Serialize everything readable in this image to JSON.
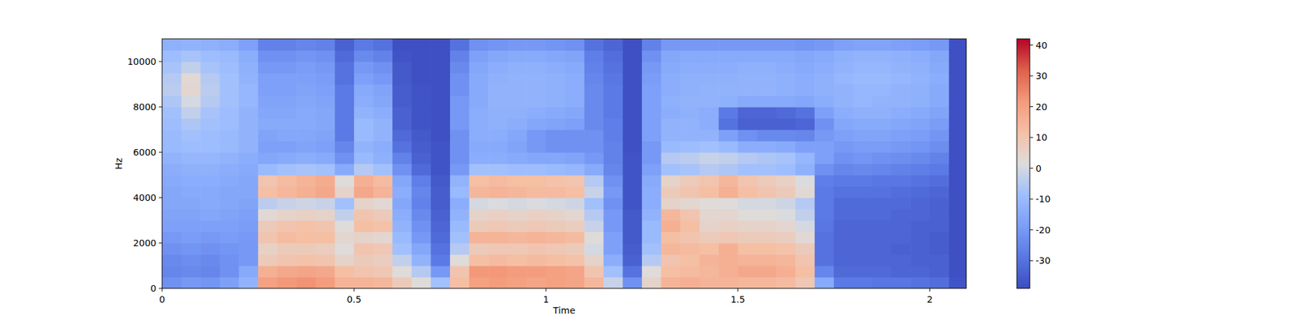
{
  "chart_data": {
    "type": "heatmap",
    "xlabel": "Time",
    "ylabel": "Hz",
    "xlim": [
      0,
      2.095
    ],
    "xticks": [
      0,
      0.5,
      1,
      1.5,
      2
    ],
    "ylim": [
      0,
      11000
    ],
    "yticks": [
      0,
      2000,
      4000,
      6000,
      8000,
      10000
    ],
    "x_edges": [
      0,
      0.05,
      0.1,
      0.15,
      0.2,
      0.25,
      0.3,
      0.35,
      0.4,
      0.45,
      0.5,
      0.55,
      0.6,
      0.65,
      0.7,
      0.75,
      0.8,
      0.85,
      0.9,
      0.95,
      1.0,
      1.05,
      1.1,
      1.15,
      1.2,
      1.25,
      1.3,
      1.35,
      1.4,
      1.45,
      1.5,
      1.55,
      1.6,
      1.65,
      1.7,
      1.75,
      1.8,
      1.85,
      1.9,
      1.95,
      2.0,
      2.05,
      2.1
    ],
    "y_edges": [
      0,
      500,
      1000,
      1500,
      2000,
      2500,
      3000,
      3500,
      4000,
      4500,
      5000,
      5500,
      6000,
      6500,
      7000,
      7500,
      8000,
      8500,
      9000,
      9500,
      10000,
      10500,
      11000
    ],
    "cells": [
      [
        -22,
        -25,
        -24,
        -22,
        -20,
        -18,
        -17,
        -16,
        -16,
        -15,
        -14,
        -12,
        -10,
        -10,
        -9,
        -8,
        -6,
        -4,
        -5,
        -7,
        -9,
        -13
      ],
      [
        -20,
        -24,
        -23,
        -21,
        -19,
        -18,
        -17,
        -16,
        -15,
        -14,
        -13,
        -11,
        -9,
        -8,
        -6,
        -3,
        0,
        4,
        3,
        -3,
        -7,
        -12
      ],
      [
        -21,
        -25,
        -24,
        -22,
        -20,
        -18,
        -16,
        -15,
        -15,
        -14,
        -13,
        -11,
        -9,
        -9,
        -8,
        -7,
        -5,
        -4,
        -5,
        -7,
        -9,
        -13
      ],
      [
        -18,
        -22,
        -22,
        -21,
        -19,
        -18,
        -17,
        -16,
        -16,
        -15,
        -14,
        -12,
        -10,
        -10,
        -9,
        -9,
        -8,
        -8,
        -8,
        -9,
        -10,
        -14
      ],
      [
        -12,
        -15,
        -20,
        -20,
        -20,
        -19,
        -18,
        -17,
        -16,
        -16,
        -15,
        -14,
        -12,
        -12,
        -12,
        -12,
        -11,
        -11,
        -12,
        -13,
        -14,
        -18
      ],
      [
        20,
        16,
        8,
        6,
        10,
        8,
        3,
        -4,
        12,
        10,
        -10,
        -16,
        -18,
        -17,
        -15,
        -16,
        -17,
        -18,
        -18,
        -20,
        -22,
        -26
      ],
      [
        22,
        18,
        10,
        8,
        13,
        10,
        5,
        -2,
        14,
        13,
        -8,
        -15,
        -18,
        -16,
        -15,
        -16,
        -17,
        -18,
        -18,
        -20,
        -22,
        -26
      ],
      [
        23,
        19,
        11,
        8,
        12,
        11,
        6,
        -1,
        16,
        15,
        -7,
        -14,
        -17,
        -16,
        -15,
        -15,
        -16,
        -17,
        -18,
        -19,
        -21,
        -25
      ],
      [
        21,
        18,
        10,
        7,
        12,
        10,
        5,
        -2,
        18,
        17,
        -8,
        -15,
        -18,
        -17,
        -16,
        -16,
        -17,
        -18,
        -19,
        -20,
        -22,
        -26
      ],
      [
        15,
        12,
        5,
        2,
        4,
        2,
        -3,
        -8,
        5,
        2,
        -15,
        -22,
        -25,
        -28,
        -28,
        -28,
        -28,
        -28,
        -30,
        -30,
        -32,
        -34
      ],
      [
        15,
        10,
        8,
        10,
        5,
        12,
        10,
        5,
        18,
        16,
        -5,
        -10,
        -12,
        -10,
        -10,
        -12,
        -14,
        -15,
        -18,
        -20,
        -24,
        -28
      ],
      [
        14,
        9,
        7,
        9,
        4,
        11,
        8,
        3,
        15,
        13,
        -8,
        -13,
        -14,
        -12,
        -12,
        -14,
        -16,
        -17,
        -20,
        -22,
        -26,
        -30
      ],
      [
        8,
        2,
        -3,
        -8,
        -10,
        -12,
        -14,
        -16,
        -14,
        -16,
        -22,
        -26,
        -30,
        -32,
        -34,
        -34,
        -35,
        -35,
        -36,
        -36,
        -37,
        -38
      ],
      [
        2,
        -5,
        -12,
        -16,
        -20,
        -22,
        -24,
        -26,
        -25,
        -27,
        -32,
        -34,
        -35,
        -36,
        -37,
        -37,
        -37,
        -37,
        -38,
        -38,
        -38,
        -38
      ],
      [
        -8,
        -20,
        -28,
        -30,
        -32,
        -33,
        -34,
        -35,
        -35,
        -36,
        -37,
        -37,
        -37,
        -38,
        -38,
        -38,
        -38,
        -38,
        -38,
        -38,
        -38,
        -38
      ],
      [
        12,
        10,
        2,
        -5,
        -8,
        -10,
        -12,
        -14,
        -10,
        -12,
        -20,
        -22,
        -22,
        -22,
        -20,
        -20,
        -20,
        -22,
        -22,
        -24,
        -26,
        -30
      ],
      [
        20,
        22,
        12,
        8,
        15,
        8,
        5,
        0,
        14,
        12,
        -8,
        -14,
        -15,
        -14,
        -14,
        -14,
        -15,
        -15,
        -15,
        -16,
        -18,
        -22
      ],
      [
        21,
        22,
        13,
        9,
        15,
        9,
        6,
        1,
        15,
        13,
        -8,
        -14,
        -15,
        -14,
        -13,
        -13,
        -12,
        -12,
        -13,
        -14,
        -16,
        -21
      ],
      [
        20,
        21,
        12,
        9,
        14,
        8,
        5,
        0,
        14,
        12,
        -9,
        -15,
        -17,
        -16,
        -14,
        -13,
        -12,
        -12,
        -12,
        -13,
        -15,
        -20
      ],
      [
        19,
        21,
        13,
        10,
        15,
        9,
        6,
        1,
        13,
        12,
        -9,
        -16,
        -20,
        -20,
        -16,
        -14,
        -12,
        -12,
        -12,
        -13,
        -15,
        -20
      ],
      [
        20,
        20,
        12,
        9,
        14,
        8,
        5,
        0,
        13,
        11,
        -10,
        -16,
        -22,
        -22,
        -17,
        -15,
        -13,
        -13,
        -13,
        -14,
        -16,
        -21
      ],
      [
        19,
        19,
        11,
        8,
        13,
        7,
        4,
        -1,
        12,
        10,
        -11,
        -17,
        -22,
        -22,
        -18,
        -16,
        -14,
        -14,
        -14,
        -15,
        -17,
        -22
      ],
      [
        14,
        10,
        5,
        0,
        2,
        -2,
        -5,
        -8,
        -2,
        -5,
        -15,
        -20,
        -22,
        -22,
        -24,
        -24,
        -24,
        -24,
        -25,
        -26,
        -27,
        -30
      ],
      [
        -2,
        -8,
        -14,
        -18,
        -18,
        -20,
        -20,
        -22,
        -20,
        -22,
        -25,
        -26,
        -26,
        -27,
        -27,
        -28,
        -28,
        -28,
        -29,
        -30,
        -31,
        -33
      ],
      [
        -22,
        -30,
        -34,
        -35,
        -36,
        -36,
        -36,
        -37,
        -37,
        -37,
        -37,
        -37,
        -38,
        -38,
        -38,
        -38,
        -38,
        -38,
        -38,
        -38,
        -38,
        -38
      ],
      [
        5,
        2,
        -5,
        -8,
        -10,
        -10,
        -12,
        -14,
        -14,
        -15,
        -18,
        -20,
        -20,
        -18,
        -18,
        -18,
        -18,
        -18,
        -19,
        -20,
        -22,
        -26
      ],
      [
        15,
        12,
        10,
        14,
        12,
        16,
        14,
        5,
        8,
        5,
        -8,
        -5,
        -10,
        -12,
        -12,
        -14,
        -13,
        -14,
        -14,
        -15,
        -16,
        -20
      ],
      [
        16,
        13,
        12,
        13,
        10,
        12,
        10,
        4,
        10,
        8,
        -7,
        -4,
        -9,
        -12,
        -12,
        -13,
        -12,
        -13,
        -13,
        -14,
        -15,
        -20
      ],
      [
        15,
        14,
        15,
        12,
        8,
        5,
        4,
        2,
        12,
        10,
        -5,
        -2,
        -8,
        -12,
        -14,
        -14,
        -12,
        -12,
        -13,
        -14,
        -15,
        -20
      ],
      [
        15,
        16,
        16,
        16,
        9,
        6,
        4,
        2,
        16,
        14,
        -6,
        -3,
        -10,
        -18,
        -30,
        -28,
        -13,
        -12,
        -13,
        -14,
        -15,
        -20
      ],
      [
        14,
        18,
        15,
        12,
        8,
        5,
        2,
        0,
        12,
        10,
        -8,
        -5,
        -14,
        -22,
        -34,
        -33,
        -15,
        -12,
        -12,
        -13,
        -15,
        -20
      ],
      [
        14,
        18,
        15,
        12,
        8,
        5,
        2,
        0,
        10,
        8,
        -8,
        -6,
        -14,
        -24,
        -34,
        -33,
        -15,
        -12,
        -12,
        -13,
        -15,
        -20
      ],
      [
        13,
        16,
        14,
        11,
        7,
        4,
        1,
        -1,
        8,
        6,
        -9,
        -7,
        -15,
        -24,
        -34,
        -32,
        -15,
        -13,
        -13,
        -14,
        -15,
        -20
      ],
      [
        9,
        12,
        10,
        8,
        3,
        0,
        -3,
        -5,
        3,
        1,
        -13,
        -11,
        -18,
        -25,
        -33,
        -30,
        -16,
        -14,
        -14,
        -15,
        -16,
        -21
      ],
      [
        -15,
        -25,
        -30,
        -30,
        -30,
        -29,
        -28,
        -28,
        -28,
        -27,
        -22,
        -18,
        -18,
        -20,
        -22,
        -18,
        -14,
        -13,
        -13,
        -14,
        -15,
        -20
      ],
      [
        -28,
        -32,
        -33,
        -33,
        -33,
        -33,
        -32,
        -32,
        -30,
        -28,
        -25,
        -22,
        -20,
        -18,
        -16,
        -14,
        -12,
        -12,
        -11,
        -12,
        -13,
        -18
      ],
      [
        -28,
        -32,
        -33,
        -33,
        -33,
        -33,
        -32,
        -32,
        -30,
        -28,
        -24,
        -21,
        -19,
        -17,
        -15,
        -13,
        -11,
        -11,
        -10,
        -11,
        -12,
        -17
      ],
      [
        -29,
        -32,
        -33,
        -33,
        -33,
        -33,
        -32,
        -32,
        -30,
        -29,
        -25,
        -22,
        -19,
        -17,
        -15,
        -13,
        -12,
        -11,
        -10,
        -11,
        -12,
        -17
      ],
      [
        -29,
        -33,
        -33,
        -34,
        -33,
        -33,
        -33,
        -32,
        -31,
        -29,
        -26,
        -23,
        -20,
        -18,
        -16,
        -14,
        -12,
        -12,
        -11,
        -12,
        -13,
        -18
      ],
      [
        -30,
        -33,
        -34,
        -34,
        -34,
        -34,
        -33,
        -33,
        -32,
        -30,
        -27,
        -24,
        -21,
        -19,
        -17,
        -15,
        -13,
        -13,
        -12,
        -13,
        -14,
        -19
      ],
      [
        -31,
        -34,
        -34,
        -35,
        -35,
        -34,
        -34,
        -34,
        -33,
        -31,
        -28,
        -26,
        -23,
        -21,
        -19,
        -17,
        -15,
        -15,
        -14,
        -15,
        -16,
        -20
      ],
      [
        -37,
        -38,
        -38,
        -38,
        -38,
        -38,
        -38,
        -38,
        -38,
        -38,
        -38,
        -38,
        -38,
        -38,
        -38,
        -38,
        -38,
        -38,
        -38,
        -38,
        -38,
        -38
      ]
    ],
    "colorbar": {
      "range": [
        -39,
        42
      ],
      "ticks": [
        -30,
        -20,
        -10,
        0,
        10,
        20,
        30,
        40
      ]
    }
  }
}
